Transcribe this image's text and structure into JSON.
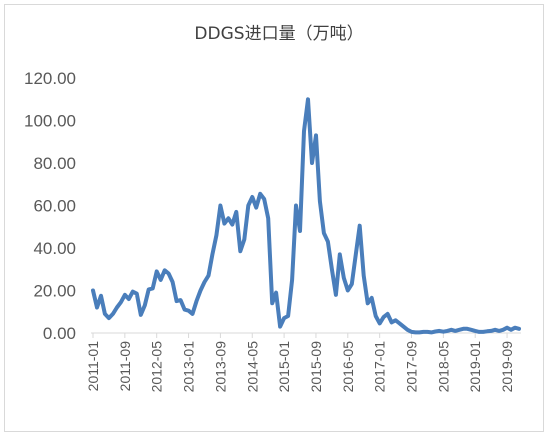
{
  "chart_data": {
    "type": "line",
    "title": "DDGS进口量（万吨）",
    "ylim": [
      0,
      120
    ],
    "yticks": [
      "0.00",
      "20.00",
      "40.00",
      "60.00",
      "80.00",
      "100.00",
      "120.00"
    ],
    "ytick_values": [
      0,
      20,
      40,
      60,
      80,
      100,
      120
    ],
    "grid": false,
    "legend": "none",
    "xtick_labels": [
      "2011-01",
      "2011-09",
      "2012-05",
      "2013-01",
      "2013-09",
      "2014-05",
      "2015-01",
      "2015-09",
      "2016-05",
      "2017-01",
      "2017-09",
      "2018-05",
      "2019-01",
      "2019-09"
    ],
    "series": [
      {
        "color": "#4a7ebb",
        "points": [
          [
            "2011-01",
            20
          ],
          [
            "2011-02",
            12
          ],
          [
            "2011-03",
            17.5
          ],
          [
            "2011-04",
            9
          ],
          [
            "2011-05",
            7
          ],
          [
            "2011-06",
            9
          ],
          [
            "2011-07",
            12
          ],
          [
            "2011-08",
            14.5
          ],
          [
            "2011-09",
            18
          ],
          [
            "2011-10",
            16
          ],
          [
            "2011-11",
            19.5
          ],
          [
            "2011-12",
            18.5
          ],
          [
            "2012-01",
            8.5
          ],
          [
            "2012-02",
            13
          ],
          [
            "2012-03",
            20.5
          ],
          [
            "2012-04",
            21
          ],
          [
            "2012-05",
            29
          ],
          [
            "2012-06",
            25
          ],
          [
            "2012-07",
            29.5
          ],
          [
            "2012-08",
            28
          ],
          [
            "2012-09",
            24
          ],
          [
            "2012-10",
            15
          ],
          [
            "2012-11",
            15.5
          ],
          [
            "2012-12",
            11
          ],
          [
            "2013-01",
            10.5
          ],
          [
            "2013-02",
            9
          ],
          [
            "2013-03",
            15
          ],
          [
            "2013-04",
            20
          ],
          [
            "2013-05",
            24
          ],
          [
            "2013-06",
            27
          ],
          [
            "2013-07",
            37
          ],
          [
            "2013-08",
            46
          ],
          [
            "2013-09",
            60
          ],
          [
            "2013-10",
            51.5
          ],
          [
            "2013-11",
            54
          ],
          [
            "2013-12",
            51
          ],
          [
            "2014-01",
            57
          ],
          [
            "2014-02",
            38.5
          ],
          [
            "2014-03",
            44
          ],
          [
            "2014-04",
            60
          ],
          [
            "2014-05",
            64
          ],
          [
            "2014-06",
            59
          ],
          [
            "2014-07",
            65.5
          ],
          [
            "2014-08",
            63
          ],
          [
            "2014-09",
            54
          ],
          [
            "2014-10",
            14
          ],
          [
            "2014-11",
            19
          ],
          [
            "2014-12",
            3
          ],
          [
            "2015-01",
            7
          ],
          [
            "2015-02",
            8
          ],
          [
            "2015-03",
            25
          ],
          [
            "2015-04",
            60
          ],
          [
            "2015-05",
            48
          ],
          [
            "2015-06",
            95
          ],
          [
            "2015-07",
            110
          ],
          [
            "2015-08",
            80
          ],
          [
            "2015-09",
            93
          ],
          [
            "2015-10",
            62
          ],
          [
            "2015-11",
            47
          ],
          [
            "2015-12",
            43
          ],
          [
            "2016-01",
            30
          ],
          [
            "2016-02",
            18
          ],
          [
            "2016-03",
            37
          ],
          [
            "2016-04",
            26
          ],
          [
            "2016-05",
            20
          ],
          [
            "2016-06",
            23
          ],
          [
            "2016-07",
            37
          ],
          [
            "2016-08",
            50.5
          ],
          [
            "2016-09",
            27
          ],
          [
            "2016-10",
            14
          ],
          [
            "2016-11",
            16.5
          ],
          [
            "2016-12",
            8
          ],
          [
            "2017-01",
            4.5
          ],
          [
            "2017-02",
            7.5
          ],
          [
            "2017-03",
            9
          ],
          [
            "2017-04",
            5
          ],
          [
            "2017-05",
            6
          ],
          [
            "2017-06",
            4.5
          ],
          [
            "2017-07",
            3
          ],
          [
            "2017-08",
            1.5
          ],
          [
            "2017-09",
            0.5
          ],
          [
            "2017-10",
            0.3
          ],
          [
            "2017-11",
            0.3
          ],
          [
            "2017-12",
            0.5
          ],
          [
            "2018-01",
            0.5
          ],
          [
            "2018-02",
            0.3
          ],
          [
            "2018-03",
            0.7
          ],
          [
            "2018-04",
            1
          ],
          [
            "2018-05",
            0.6
          ],
          [
            "2018-06",
            1
          ],
          [
            "2018-07",
            1.5
          ],
          [
            "2018-08",
            1
          ],
          [
            "2018-09",
            1.5
          ],
          [
            "2018-10",
            2
          ],
          [
            "2018-11",
            2
          ],
          [
            "2018-12",
            1.5
          ],
          [
            "2019-01",
            1
          ],
          [
            "2019-02",
            0.5
          ],
          [
            "2019-03",
            0.5
          ],
          [
            "2019-04",
            0.8
          ],
          [
            "2019-05",
            1
          ],
          [
            "2019-06",
            1.5
          ],
          [
            "2019-07",
            1
          ],
          [
            "2019-08",
            1.5
          ],
          [
            "2019-09",
            2.5
          ],
          [
            "2019-10",
            1.5
          ],
          [
            "2019-11",
            2.5
          ],
          [
            "2019-12",
            2
          ]
        ]
      }
    ]
  }
}
